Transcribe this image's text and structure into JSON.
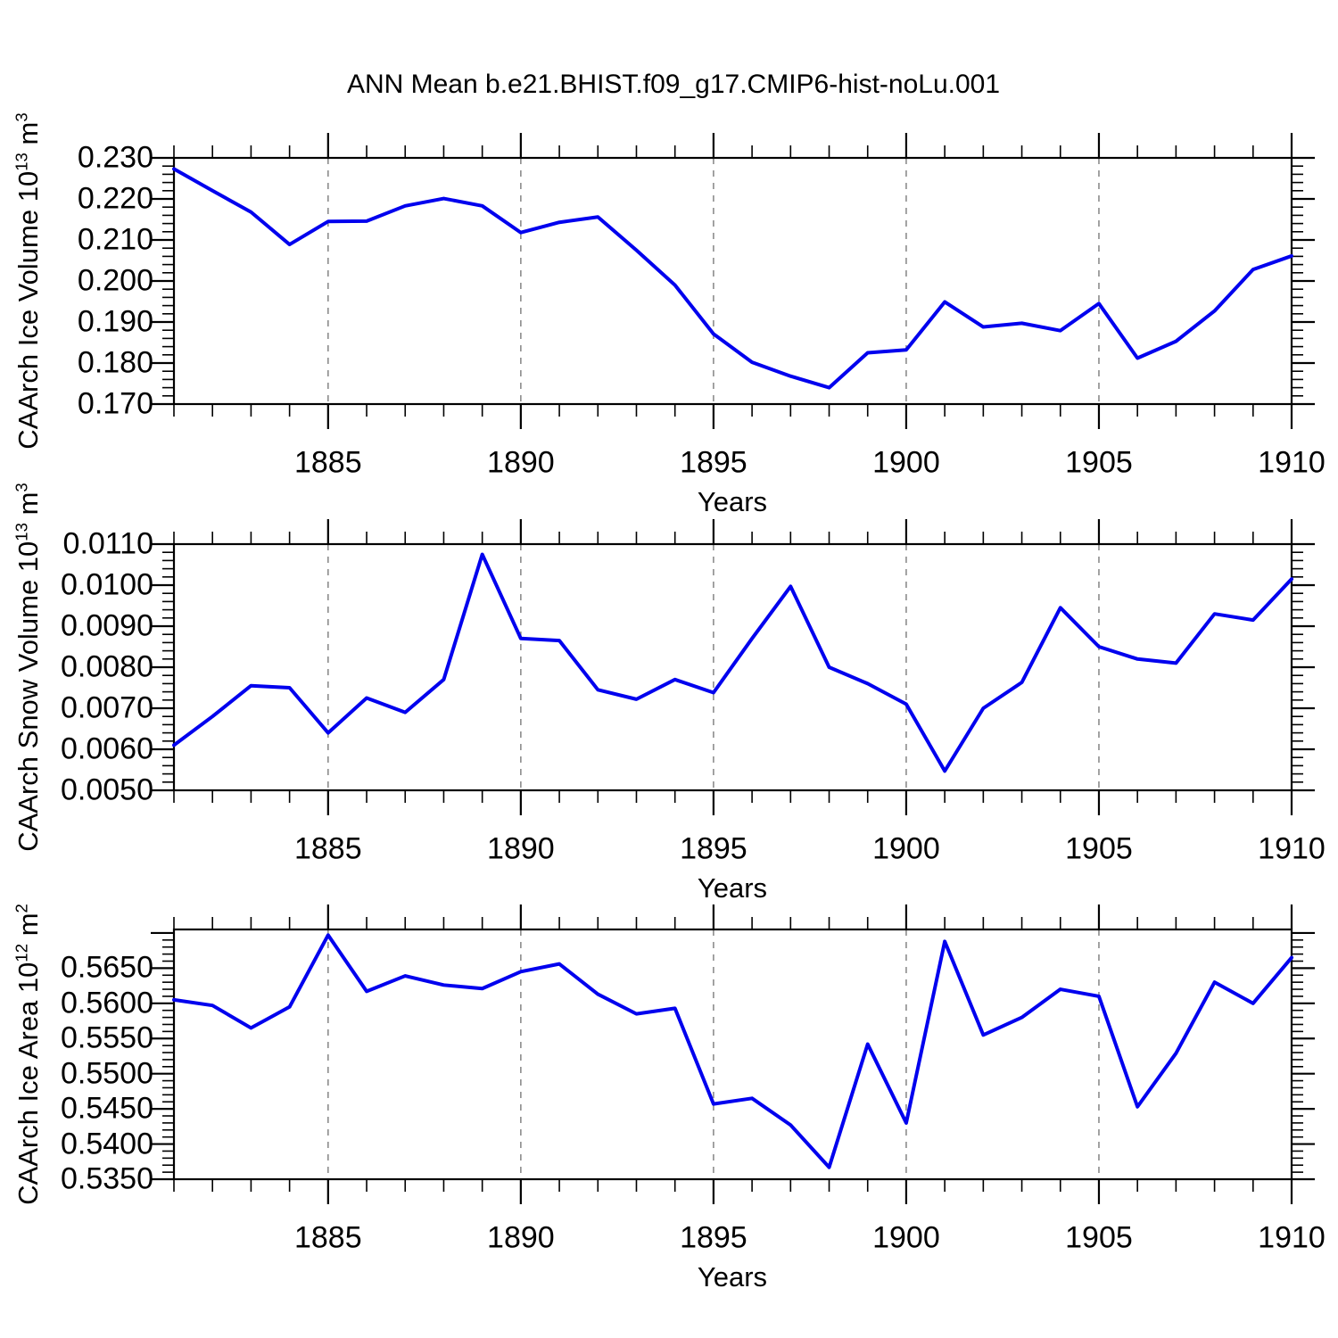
{
  "title": "ANN Mean b.e21.BHIST.f09_g17.CMIP6-hist-noLu.001",
  "line_color": "#0000EE",
  "grid_color": "#848484",
  "x_axis": {
    "label": "Years",
    "range": [
      1881,
      1910
    ],
    "major_ticks": [
      1885,
      1890,
      1895,
      1900,
      1905,
      1910
    ],
    "minor_step": 1
  },
  "chart_data": [
    {
      "type": "line",
      "ylabel": "CAArch Ice Volume 10^13 m^3",
      "ylabel_parts": {
        "base": "CAArch Ice Volume 10",
        "exp": "13",
        "unit": " m",
        "unit_exp": "3"
      },
      "xlabel": "Years",
      "grid": "vertical-dashed",
      "legend": "none",
      "ylim": [
        0.17,
        0.23
      ],
      "ytick_step": 0.01,
      "yminor_step": 0.002,
      "ytick_labels": [
        "0.170",
        "0.180",
        "0.190",
        "0.200",
        "0.210",
        "0.220",
        "0.230"
      ],
      "x": [
        1881,
        1882,
        1883,
        1884,
        1885,
        1886,
        1887,
        1888,
        1889,
        1890,
        1891,
        1892,
        1893,
        1894,
        1895,
        1896,
        1897,
        1898,
        1899,
        1900,
        1901,
        1902,
        1903,
        1904,
        1905,
        1906,
        1907,
        1908,
        1909,
        1910
      ],
      "values": [
        0.2273,
        0.222,
        0.2168,
        0.2089,
        0.2145,
        0.2146,
        0.2183,
        0.2201,
        0.2183,
        0.2118,
        0.2143,
        0.2156,
        0.2075,
        0.199,
        0.1871,
        0.1802,
        0.1768,
        0.174,
        0.1825,
        0.1832,
        0.1949,
        0.1888,
        0.1897,
        0.1879,
        0.1945,
        0.1812,
        0.1853,
        0.1927,
        0.2028,
        0.2061
      ]
    },
    {
      "type": "line",
      "ylabel": "CAArch Snow Volume 10^13 m^3",
      "ylabel_parts": {
        "base": "CAArch Snow Volume 10",
        "exp": "13",
        "unit": " m",
        "unit_exp": "3"
      },
      "xlabel": "Years",
      "grid": "vertical-dashed",
      "legend": "none",
      "ylim": [
        0.005,
        0.011
      ],
      "ytick_step": 0.001,
      "yminor_step": 0.0002,
      "ytick_labels": [
        "0.0050",
        "0.0060",
        "0.0070",
        "0.0080",
        "0.0090",
        "0.0100",
        "0.0110"
      ],
      "x": [
        1881,
        1882,
        1883,
        1884,
        1885,
        1886,
        1887,
        1888,
        1889,
        1890,
        1891,
        1892,
        1893,
        1894,
        1895,
        1896,
        1897,
        1898,
        1899,
        1900,
        1901,
        1902,
        1903,
        1904,
        1905,
        1906,
        1907,
        1908,
        1909,
        1910
      ],
      "values": [
        0.0061,
        0.0068,
        0.00755,
        0.0075,
        0.0064,
        0.00725,
        0.0069,
        0.0077,
        0.01075,
        0.0087,
        0.00865,
        0.00745,
        0.00722,
        0.0077,
        0.00738,
        0.0087,
        0.00997,
        0.008,
        0.0076,
        0.0071,
        0.00547,
        0.007,
        0.00763,
        0.00945,
        0.0085,
        0.0082,
        0.0081,
        0.0093,
        0.00915,
        0.01015
      ]
    },
    {
      "type": "line",
      "ylabel": "CAArch Ice Area 10^12 m^2",
      "ylabel_parts": {
        "base": "CAArch Ice Area 10",
        "exp": "12",
        "unit": " m",
        "unit_exp": "2"
      },
      "xlabel": "Years",
      "grid": "vertical-dashed",
      "legend": "none",
      "ylim": [
        0.535,
        0.5705
      ],
      "ytick_step": 0.005,
      "yminor_step": 0.001,
      "ytick_labels": [
        "0.5350",
        "0.5400",
        "0.5450",
        "0.5500",
        "0.5550",
        "0.5600",
        "0.5650"
      ],
      "x": [
        1881,
        1882,
        1883,
        1884,
        1885,
        1886,
        1887,
        1888,
        1889,
        1890,
        1891,
        1892,
        1893,
        1894,
        1895,
        1896,
        1897,
        1898,
        1899,
        1900,
        1901,
        1902,
        1903,
        1904,
        1905,
        1906,
        1907,
        1908,
        1909,
        1910
      ],
      "values": [
        0.5605,
        0.5597,
        0.5565,
        0.5595,
        0.5697,
        0.5617,
        0.5639,
        0.5626,
        0.5621,
        0.5645,
        0.5656,
        0.5613,
        0.5585,
        0.5593,
        0.5457,
        0.5465,
        0.5427,
        0.5367,
        0.5542,
        0.543,
        0.5688,
        0.5555,
        0.558,
        0.562,
        0.561,
        0.5453,
        0.5529,
        0.563,
        0.56,
        0.5665
      ]
    }
  ]
}
